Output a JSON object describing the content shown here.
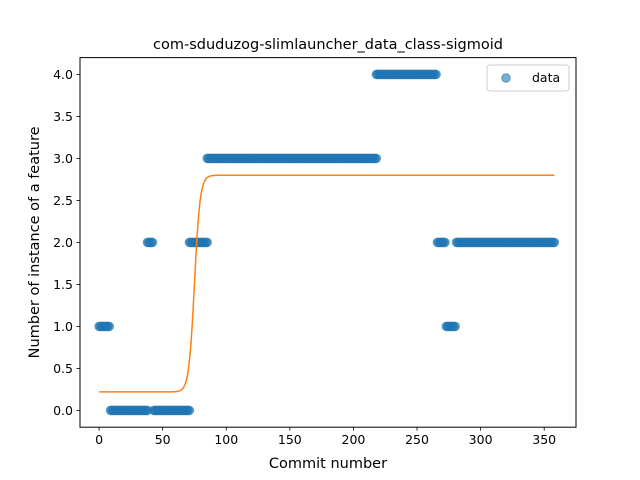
{
  "chart_data": {
    "type": "scatter",
    "title": "com-sduduzog-slimlauncher_data_class-sigmoid",
    "xlabel": "Commit number",
    "ylabel": "Number of instance of a feature",
    "xlim": [
      -15,
      375
    ],
    "ylim": [
      -0.2,
      4.2
    ],
    "xticks": [
      0,
      50,
      100,
      150,
      200,
      250,
      300,
      350
    ],
    "yticks": [
      0.0,
      0.5,
      1.0,
      1.5,
      2.0,
      2.5,
      3.0,
      3.5,
      4.0
    ],
    "xtick_labels": [
      "0",
      "50",
      "100",
      "150",
      "200",
      "250",
      "300",
      "350"
    ],
    "ytick_labels": [
      "0.0",
      "0.5",
      "1.0",
      "1.5",
      "2.0",
      "2.5",
      "3.0",
      "3.5",
      "4.0"
    ],
    "grid": false,
    "legend_position": "top-right",
    "series": [
      {
        "name": "data",
        "kind": "scatter",
        "color": "#1f77b4",
        "segments": [
          {
            "x_start": 0,
            "x_end": 8,
            "y": 1
          },
          {
            "x_start": 9,
            "x_end": 38,
            "y": 0
          },
          {
            "x_start": 38,
            "x_end": 42,
            "y": 2
          },
          {
            "x_start": 43,
            "x_end": 71,
            "y": 0
          },
          {
            "x_start": 71,
            "x_end": 85,
            "y": 2
          },
          {
            "x_start": 85,
            "x_end": 218,
            "y": 3
          },
          {
            "x_start": 218,
            "x_end": 265,
            "y": 4
          },
          {
            "x_start": 266,
            "x_end": 272,
            "y": 2
          },
          {
            "x_start": 273,
            "x_end": 280,
            "y": 1
          },
          {
            "x_start": 281,
            "x_end": 358,
            "y": 2
          }
        ]
      },
      {
        "kind": "line",
        "color": "#ff7f0e",
        "model": "sigmoid",
        "params": {
          "lower": 0.22,
          "upper": 2.8,
          "midpoint": 75,
          "steepness": 0.45
        },
        "x_range": [
          0,
          358
        ]
      }
    ]
  }
}
